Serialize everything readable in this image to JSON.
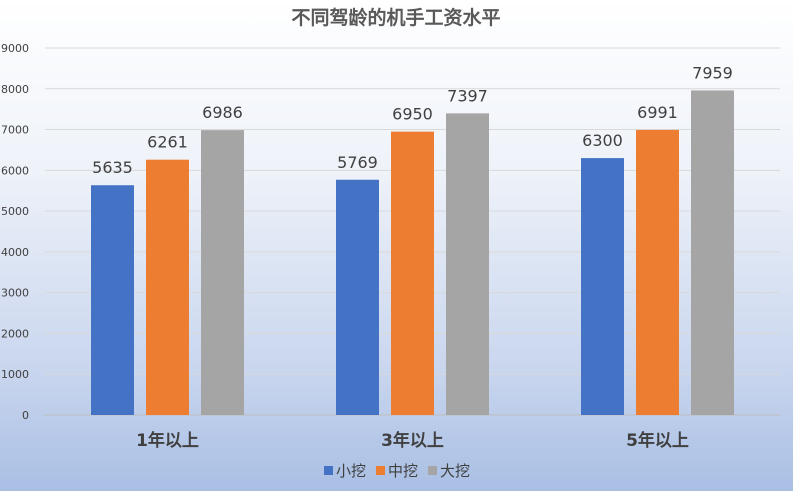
{
  "chart_data": {
    "type": "bar",
    "title": "不同驾龄的机手工资水平",
    "xlabel": "",
    "ylabel": "",
    "categories": [
      "1年以上",
      "3年以上",
      "5年以上"
    ],
    "series": [
      {
        "name": "小挖",
        "values": [
          5635,
          5769,
          6300
        ],
        "color": "#4472C4"
      },
      {
        "name": "中挖",
        "values": [
          6261,
          6950,
          6991
        ],
        "color": "#ED7D31"
      },
      {
        "name": "大挖",
        "values": [
          6986,
          7397,
          7959
        ],
        "color": "#A5A5A5"
      }
    ],
    "ylim": [
      0,
      9000
    ],
    "yticks": [
      0,
      1000,
      2000,
      3000,
      4000,
      5000,
      6000,
      7000,
      8000,
      9000
    ],
    "grid": true,
    "legend_position": "bottom"
  }
}
